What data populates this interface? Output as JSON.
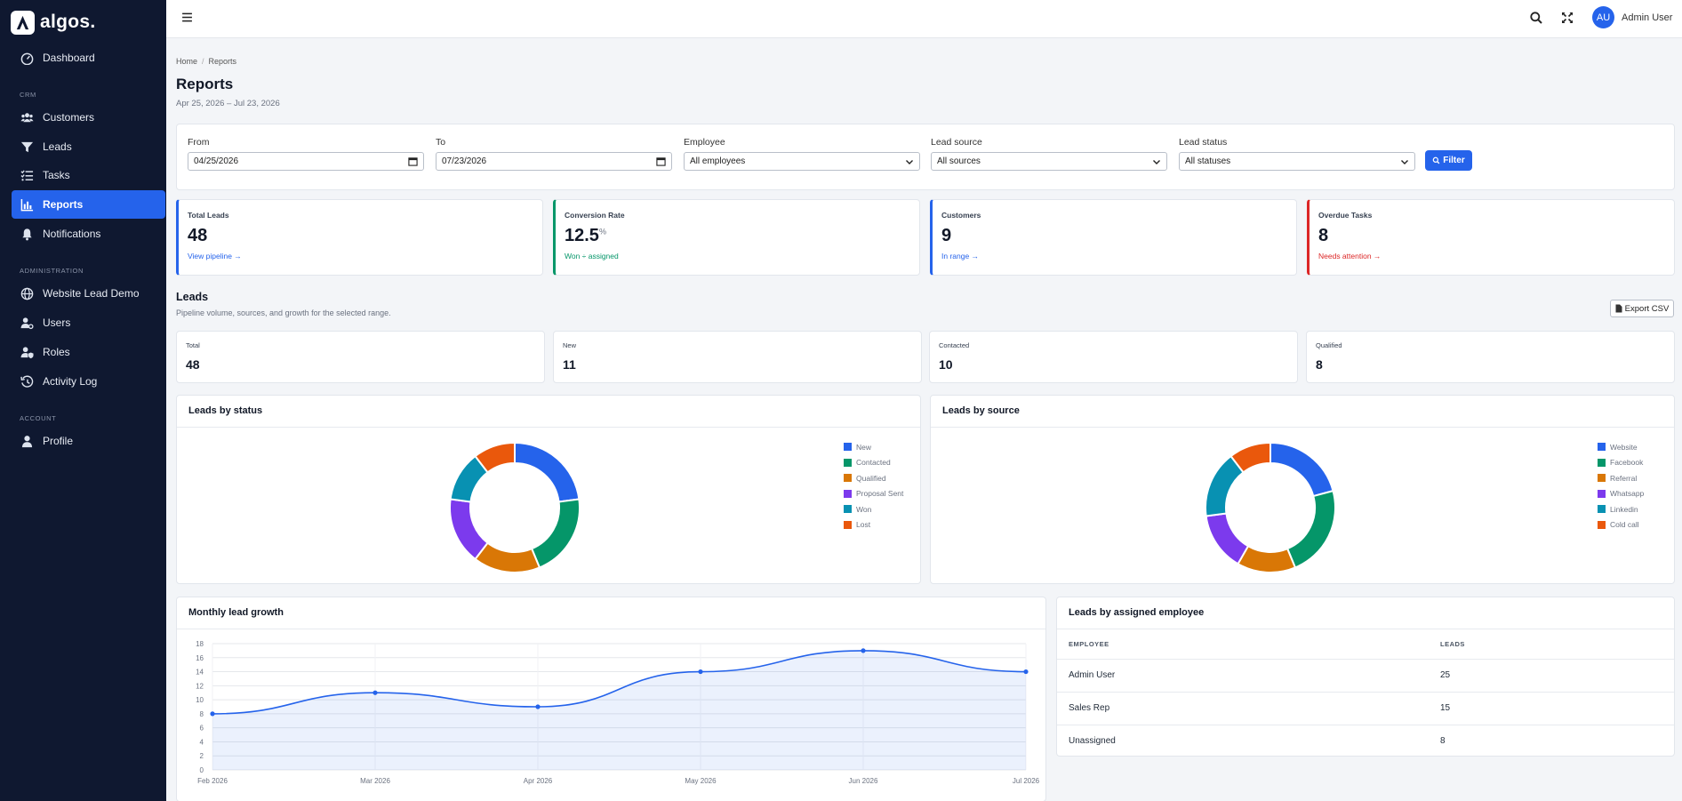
{
  "brand": {
    "name": "algos."
  },
  "sidebar": {
    "sections": {
      "crm": "CRM",
      "administration": "ADMINISTRATION",
      "account": "ACCOUNT"
    },
    "items": {
      "dashboard": "Dashboard",
      "customers": "Customers",
      "leads": "Leads",
      "tasks": "Tasks",
      "reports": "Reports",
      "notifications": "Notifications",
      "website_lead_demo": "Website Lead Demo",
      "users": "Users",
      "roles": "Roles",
      "activity_log": "Activity Log",
      "profile": "Profile"
    }
  },
  "topbar": {
    "avatar_initials": "AU",
    "user_name": "Admin User"
  },
  "breadcrumb": {
    "home": "Home",
    "current": "Reports"
  },
  "page": {
    "title": "Reports",
    "date_range": "Apr 25, 2026 – Jul 23, 2026"
  },
  "filters": {
    "from_label": "From",
    "from_value": "04/25/2026",
    "to_label": "To",
    "to_value": "07/23/2026",
    "employee_label": "Employee",
    "employee_value": "All employees",
    "source_label": "Lead source",
    "source_value": "All sources",
    "status_label": "Lead status",
    "status_value": "All statuses",
    "button": "Filter"
  },
  "kpis": {
    "total_leads": {
      "label": "Total Leads",
      "value": "48",
      "link": "View pipeline →"
    },
    "conversion": {
      "label": "Conversion Rate",
      "value": "12.5",
      "unit": "%",
      "link": "Won ÷ assigned"
    },
    "customers": {
      "label": "Customers",
      "value": "9",
      "link": "In range →"
    },
    "overdue": {
      "label": "Overdue Tasks",
      "value": "8",
      "link": "Needs attention →"
    }
  },
  "leads_section": {
    "title": "Leads",
    "subtitle": "Pipeline volume, sources, and growth for the selected range.",
    "export_label": "Export CSV",
    "stats": {
      "total": {
        "label": "Total",
        "value": "48"
      },
      "new": {
        "label": "New",
        "value": "11"
      },
      "contacted": {
        "label": "Contacted",
        "value": "10"
      },
      "qualified": {
        "label": "Qualified",
        "value": "8"
      }
    }
  },
  "panels": {
    "by_status": "Leads by status",
    "by_source": "Leads by source",
    "growth": "Monthly lead growth",
    "by_employee": "Leads by assigned employee"
  },
  "employee_table": {
    "headers": {
      "employee": "EMPLOYEE",
      "leads": "LEADS"
    },
    "rows": [
      {
        "name": "Admin User",
        "leads": "25"
      },
      {
        "name": "Sales Rep",
        "leads": "15"
      },
      {
        "name": "Unassigned",
        "leads": "8"
      }
    ]
  },
  "chart_data": [
    {
      "type": "pie",
      "title": "Leads by status",
      "categories": [
        "New",
        "Contacted",
        "Qualified",
        "Proposal Sent",
        "Won",
        "Lost"
      ],
      "values": [
        11,
        10,
        8,
        8,
        6,
        5
      ],
      "colors": [
        "#2563eb",
        "#059669",
        "#d97706",
        "#7c3aed",
        "#0891b2",
        "#ea580c"
      ],
      "legend": "right"
    },
    {
      "type": "pie",
      "title": "Leads by source",
      "categories": [
        "Website",
        "Facebook",
        "Referral",
        "Whatsapp",
        "Linkedin",
        "Cold call"
      ],
      "values": [
        10,
        11,
        7,
        7,
        8,
        5
      ],
      "colors": [
        "#2563eb",
        "#059669",
        "#d97706",
        "#7c3aed",
        "#0891b2",
        "#ea580c"
      ],
      "legend": "right"
    },
    {
      "type": "area",
      "title": "Monthly lead growth",
      "categories": [
        "Feb 2026",
        "Mar 2026",
        "Apr 2026",
        "May 2026",
        "Jun 2026",
        "Jul 2026"
      ],
      "values": [
        8,
        11,
        9,
        14,
        17,
        14
      ],
      "ylim": [
        0,
        18
      ],
      "yticks": [
        0,
        2,
        4,
        6,
        8,
        10,
        12,
        14,
        16,
        18
      ],
      "color": "#2563eb",
      "grid": true
    }
  ]
}
